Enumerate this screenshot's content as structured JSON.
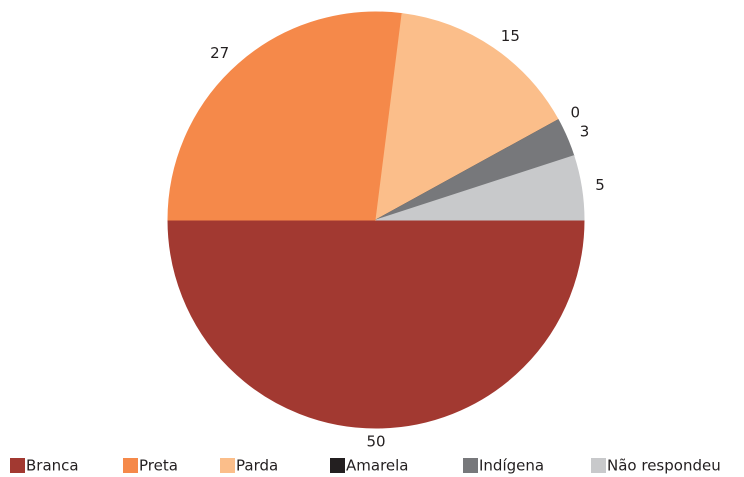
{
  "chart_data": {
    "type": "pie",
    "categories": [
      "Branca",
      "Preta",
      "Parda",
      "Amarela",
      "Indígena",
      "Não respondeu"
    ],
    "values": [
      50,
      27,
      15,
      0,
      3,
      5
    ],
    "colors": [
      "#a23931",
      "#f5894a",
      "#fbbe8a",
      "#231f20",
      "#77787b",
      "#c8c9cb"
    ],
    "legend": "bottom"
  }
}
